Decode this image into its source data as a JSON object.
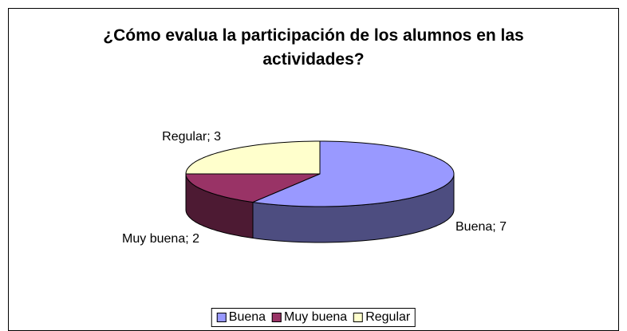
{
  "chart_data": {
    "type": "pie",
    "title": "¿Cómo evalua la participación de los alumnos en las actividades?",
    "categories": [
      "Buena",
      "Muy buena",
      "Regular"
    ],
    "values": [
      7,
      2,
      3
    ],
    "value_labels": [
      "Buena; 7",
      "Muy buena; 2",
      "Regular; 3"
    ],
    "colors": [
      "#9999ff",
      "#993366",
      "#ffffcc"
    ],
    "legend": "bottom"
  }
}
